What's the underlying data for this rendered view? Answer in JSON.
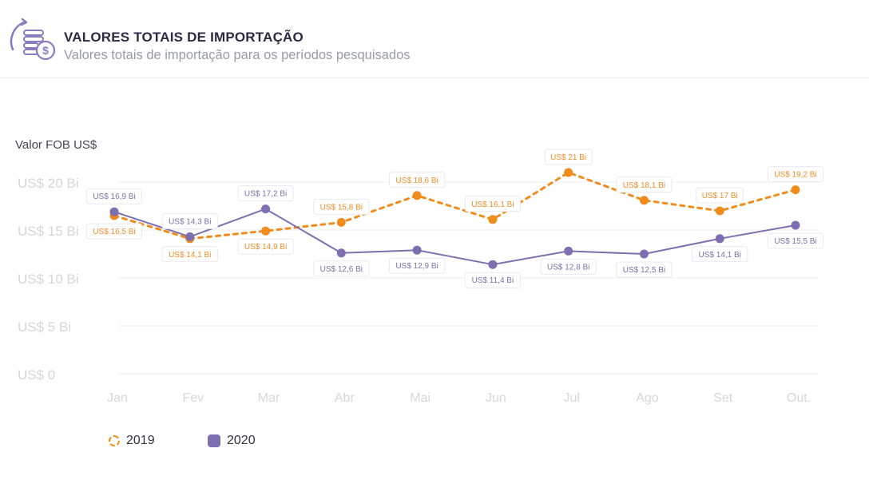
{
  "header": {
    "icon": "coins-dollar-icon",
    "title": "VALORES TOTAIS DE IMPORTAÇÃO",
    "subtitle": "Valores totais de importação para os períodos pesquisados"
  },
  "colors": {
    "s2019": "#f08c1c",
    "s2020": "#7d6fb0",
    "grid": "#eeeef2",
    "tick": "#d6d6dc",
    "label2019": "#ef8d2a",
    "label2020": "#7b72a8"
  },
  "chart_data": {
    "type": "line",
    "title": "VALORES TOTAIS DE IMPORTAÇÃO",
    "ylabel": "Valor FOB US$",
    "xlabel": "",
    "ylim": [
      0,
      20
    ],
    "yticks": [
      0,
      5,
      10,
      15,
      20
    ],
    "ytick_labels": [
      "US$ 0",
      "US$ 5 Bi",
      "US$ 10 Bi",
      "US$ 15 Bi",
      "US$ 20 Bi"
    ],
    "categories": [
      "Jan",
      "Fev",
      "Mar",
      "Abr",
      "Mai",
      "Jun",
      "Jul",
      "Ago",
      "Set",
      "Out."
    ],
    "series": [
      {
        "name": "2019",
        "style": "dashed",
        "values": [
          16.5,
          14.1,
          14.9,
          15.8,
          18.6,
          16.1,
          21,
          18.1,
          17,
          19.2
        ],
        "labels": [
          "US$ 16,5 Bi",
          "US$ 14,1 Bi",
          "US$ 14,9 Bi",
          "US$ 15,8 Bi",
          "US$ 18,6 Bi",
          "US$ 16,1 Bi",
          "US$ 21 Bi",
          "US$ 18,1 Bi",
          "US$ 17 Bi",
          "US$ 19,2 Bi"
        ]
      },
      {
        "name": "2020",
        "style": "solid",
        "values": [
          16.9,
          14.3,
          17.2,
          12.6,
          12.9,
          11.4,
          12.8,
          12.5,
          14.1,
          15.5
        ],
        "labels": [
          "US$ 16,9 Bi",
          "US$ 14,3 Bi",
          "US$ 17,2 Bi",
          "US$ 12,6 Bi",
          "US$ 12,9 Bi",
          "US$ 11,4 Bi",
          "US$ 12,8 Bi",
          "US$ 12,5 Bi",
          "US$ 14,1 Bi",
          "US$ 15,5 Bi"
        ]
      }
    ],
    "legend": {
      "position": "bottom-left",
      "entries": [
        "2019",
        "2020"
      ]
    },
    "grid": true
  }
}
